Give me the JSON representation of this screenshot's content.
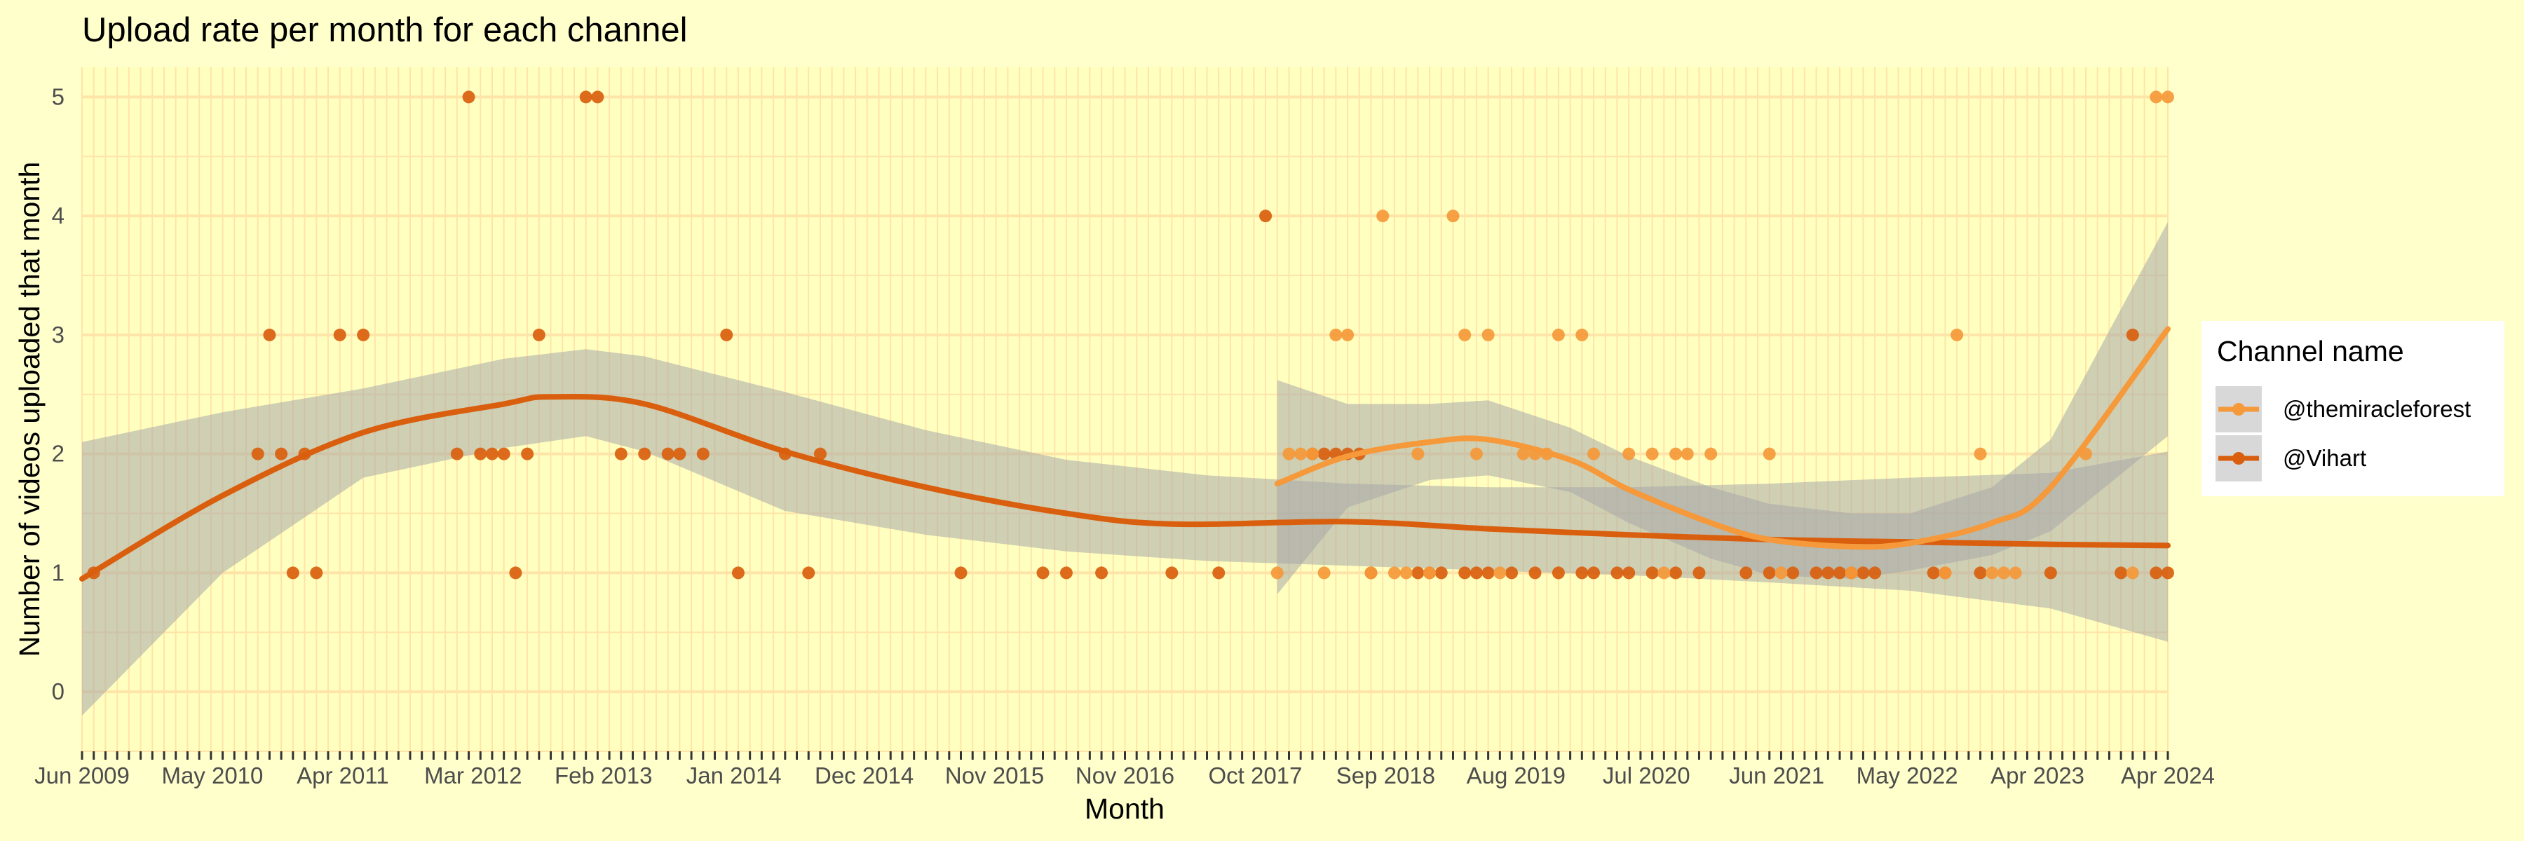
{
  "chart_data": {
    "type": "scatter",
    "title": "Upload rate per month for each channel",
    "xlabel": "Month",
    "ylabel": "Number of videos uploaded that month",
    "x_ticks": [
      "Jun 2009",
      "May 2010",
      "Apr 2011",
      "Mar 2012",
      "Feb 2013",
      "Jan 2014",
      "Dec 2014",
      "Nov 2015",
      "Nov 2016",
      "Oct 2017",
      "Sep 2018",
      "Aug 2019",
      "Jul 2020",
      "Jun 2021",
      "May 2022",
      "Apr 2023",
      "Apr 2024"
    ],
    "xlim": [
      "2009-06",
      "2024-04"
    ],
    "y_ticks": [
      0,
      1,
      2,
      3,
      4,
      5
    ],
    "ylim": [
      -0.5,
      5.25
    ],
    "grid": true,
    "legend": {
      "title": "Channel name",
      "position": "right",
      "entries": [
        "@themiracleforest",
        "@Vihart"
      ]
    },
    "colors": {
      "@themiracleforest": "#F5993A",
      "@Vihart": "#D95F0E",
      "background": "#FFFFCC",
      "grid": "#FFE4A8",
      "ribbon": "#A8A8A8"
    },
    "series": [
      {
        "name": "@Vihart",
        "points": [
          [
            "2009-07",
            1
          ],
          [
            "2010-09",
            2
          ],
          [
            "2010-10",
            3
          ],
          [
            "2010-11",
            2
          ],
          [
            "2010-12",
            1
          ],
          [
            "2011-01",
            2
          ],
          [
            "2011-02",
            1
          ],
          [
            "2011-04",
            3
          ],
          [
            "2011-06",
            3
          ],
          [
            "2012-02",
            2
          ],
          [
            "2012-03",
            5
          ],
          [
            "2012-04",
            2
          ],
          [
            "2012-05",
            2
          ],
          [
            "2012-06",
            2
          ],
          [
            "2012-07",
            1
          ],
          [
            "2012-08",
            2
          ],
          [
            "2012-09",
            3
          ],
          [
            "2013-01",
            5
          ],
          [
            "2013-02",
            5
          ],
          [
            "2013-04",
            2
          ],
          [
            "2013-06",
            2
          ],
          [
            "2013-08",
            2
          ],
          [
            "2013-09",
            2
          ],
          [
            "2013-11",
            2
          ],
          [
            "2014-01",
            3
          ],
          [
            "2014-02",
            1
          ],
          [
            "2014-06",
            2
          ],
          [
            "2014-08",
            1
          ],
          [
            "2014-09",
            2
          ],
          [
            "2015-09",
            1
          ],
          [
            "2016-04",
            1
          ],
          [
            "2016-06",
            1
          ],
          [
            "2016-09",
            1
          ],
          [
            "2017-03",
            1
          ],
          [
            "2017-07",
            1
          ],
          [
            "2017-11",
            4
          ],
          [
            "2018-03",
            2
          ],
          [
            "2018-04",
            2
          ],
          [
            "2018-05",
            2
          ],
          [
            "2018-06",
            2
          ],
          [
            "2018-07",
            2
          ],
          [
            "2018-08",
            1
          ],
          [
            "2018-12",
            1
          ],
          [
            "2019-01",
            1
          ],
          [
            "2019-02",
            1
          ],
          [
            "2019-04",
            1
          ],
          [
            "2019-05",
            1
          ],
          [
            "2019-06",
            1
          ],
          [
            "2019-08",
            1
          ],
          [
            "2019-10",
            1
          ],
          [
            "2019-12",
            1
          ],
          [
            "2020-02",
            1
          ],
          [
            "2020-03",
            1
          ],
          [
            "2020-05",
            1
          ],
          [
            "2020-06",
            1
          ],
          [
            "2020-08",
            1
          ],
          [
            "2020-10",
            1
          ],
          [
            "2020-12",
            1
          ],
          [
            "2021-04",
            1
          ],
          [
            "2021-06",
            1
          ],
          [
            "2021-08",
            1
          ],
          [
            "2021-10",
            1
          ],
          [
            "2021-11",
            1
          ],
          [
            "2021-12",
            1
          ],
          [
            "2022-01",
            1
          ],
          [
            "2022-02",
            1
          ],
          [
            "2022-03",
            1
          ],
          [
            "2022-08",
            1
          ],
          [
            "2022-09",
            1
          ],
          [
            "2022-12",
            1
          ],
          [
            "2023-06",
            1
          ],
          [
            "2023-12",
            1
          ],
          [
            "2024-01",
            3
          ],
          [
            "2024-03",
            1
          ],
          [
            "2024-04",
            1
          ]
        ],
        "smooth": [
          [
            "2009-06",
            0.95
          ],
          [
            "2010-06",
            1.65
          ],
          [
            "2011-06",
            2.18
          ],
          [
            "2012-06",
            2.42
          ],
          [
            "2012-10",
            2.48
          ],
          [
            "2013-06",
            2.42
          ],
          [
            "2014-06",
            2.02
          ],
          [
            "2015-06",
            1.72
          ],
          [
            "2016-06",
            1.5
          ],
          [
            "2017-03",
            1.41
          ],
          [
            "2018-06",
            1.43
          ],
          [
            "2019-06",
            1.37
          ],
          [
            "2020-06",
            1.32
          ],
          [
            "2021-06",
            1.28
          ],
          [
            "2022-06",
            1.26
          ],
          [
            "2023-06",
            1.24
          ],
          [
            "2024-04",
            1.23
          ]
        ],
        "band": [
          [
            "2009-06",
            -0.2,
            2.1
          ],
          [
            "2010-06",
            1.0,
            2.35
          ],
          [
            "2011-06",
            1.8,
            2.55
          ],
          [
            "2012-06",
            2.05,
            2.8
          ],
          [
            "2013-01",
            2.15,
            2.88
          ],
          [
            "2013-06",
            2.02,
            2.82
          ],
          [
            "2014-06",
            1.52,
            2.52
          ],
          [
            "2015-06",
            1.32,
            2.2
          ],
          [
            "2016-06",
            1.18,
            1.95
          ],
          [
            "2017-06",
            1.1,
            1.82
          ],
          [
            "2018-06",
            1.06,
            1.75
          ],
          [
            "2019-06",
            1.02,
            1.72
          ],
          [
            "2020-06",
            0.98,
            1.72
          ],
          [
            "2021-06",
            0.92,
            1.75
          ],
          [
            "2022-06",
            0.85,
            1.8
          ],
          [
            "2023-06",
            0.7,
            1.84
          ],
          [
            "2024-04",
            0.42,
            2.02
          ]
        ]
      },
      {
        "name": "@themiracleforest",
        "points": [
          [
            "2017-12",
            1
          ],
          [
            "2018-01",
            2
          ],
          [
            "2018-02",
            2
          ],
          [
            "2018-03",
            2
          ],
          [
            "2018-04",
            1
          ],
          [
            "2018-05",
            3
          ],
          [
            "2018-06",
            3
          ],
          [
            "2018-08",
            1
          ],
          [
            "2018-09",
            4
          ],
          [
            "2018-10",
            1
          ],
          [
            "2018-11",
            1
          ],
          [
            "2018-12",
            2
          ],
          [
            "2019-01",
            1
          ],
          [
            "2019-03",
            4
          ],
          [
            "2019-04",
            3
          ],
          [
            "2019-05",
            2
          ],
          [
            "2019-06",
            3
          ],
          [
            "2019-07",
            1
          ],
          [
            "2019-09",
            2
          ],
          [
            "2019-10",
            2
          ],
          [
            "2019-11",
            2
          ],
          [
            "2019-12",
            3
          ],
          [
            "2020-02",
            3
          ],
          [
            "2020-03",
            2
          ],
          [
            "2020-06",
            2
          ],
          [
            "2020-08",
            2
          ],
          [
            "2020-09",
            1
          ],
          [
            "2020-10",
            2
          ],
          [
            "2020-11",
            2
          ],
          [
            "2021-01",
            2
          ],
          [
            "2021-06",
            2
          ],
          [
            "2021-07",
            1
          ],
          [
            "2022-01",
            1
          ],
          [
            "2022-09",
            1
          ],
          [
            "2022-10",
            3
          ],
          [
            "2022-12",
            2
          ],
          [
            "2023-01",
            1
          ],
          [
            "2023-02",
            1
          ],
          [
            "2023-03",
            1
          ],
          [
            "2023-09",
            2
          ],
          [
            "2024-01",
            1
          ],
          [
            "2024-03",
            5
          ],
          [
            "2024-04",
            5
          ]
        ],
        "smooth": [
          [
            "2017-12",
            1.75
          ],
          [
            "2018-06",
            1.98
          ],
          [
            "2019-01",
            2.1
          ],
          [
            "2019-06",
            2.12
          ],
          [
            "2020-01",
            1.95
          ],
          [
            "2020-06",
            1.7
          ],
          [
            "2021-01",
            1.42
          ],
          [
            "2021-06",
            1.28
          ],
          [
            "2022-01",
            1.22
          ],
          [
            "2022-06",
            1.25
          ],
          [
            "2023-01",
            1.42
          ],
          [
            "2023-06",
            1.72
          ],
          [
            "2024-04",
            3.05
          ]
        ],
        "band": [
          [
            "2017-12",
            0.82,
            2.62
          ],
          [
            "2018-06",
            1.55,
            2.42
          ],
          [
            "2019-01",
            1.78,
            2.42
          ],
          [
            "2019-06",
            1.82,
            2.45
          ],
          [
            "2020-01",
            1.68,
            2.22
          ],
          [
            "2020-06",
            1.42,
            1.98
          ],
          [
            "2021-01",
            1.12,
            1.72
          ],
          [
            "2021-06",
            0.98,
            1.58
          ],
          [
            "2022-01",
            0.95,
            1.5
          ],
          [
            "2022-06",
            1.02,
            1.5
          ],
          [
            "2023-01",
            1.15,
            1.72
          ],
          [
            "2023-06",
            1.35,
            2.12
          ],
          [
            "2024-04",
            2.15,
            3.95
          ]
        ]
      }
    ]
  }
}
